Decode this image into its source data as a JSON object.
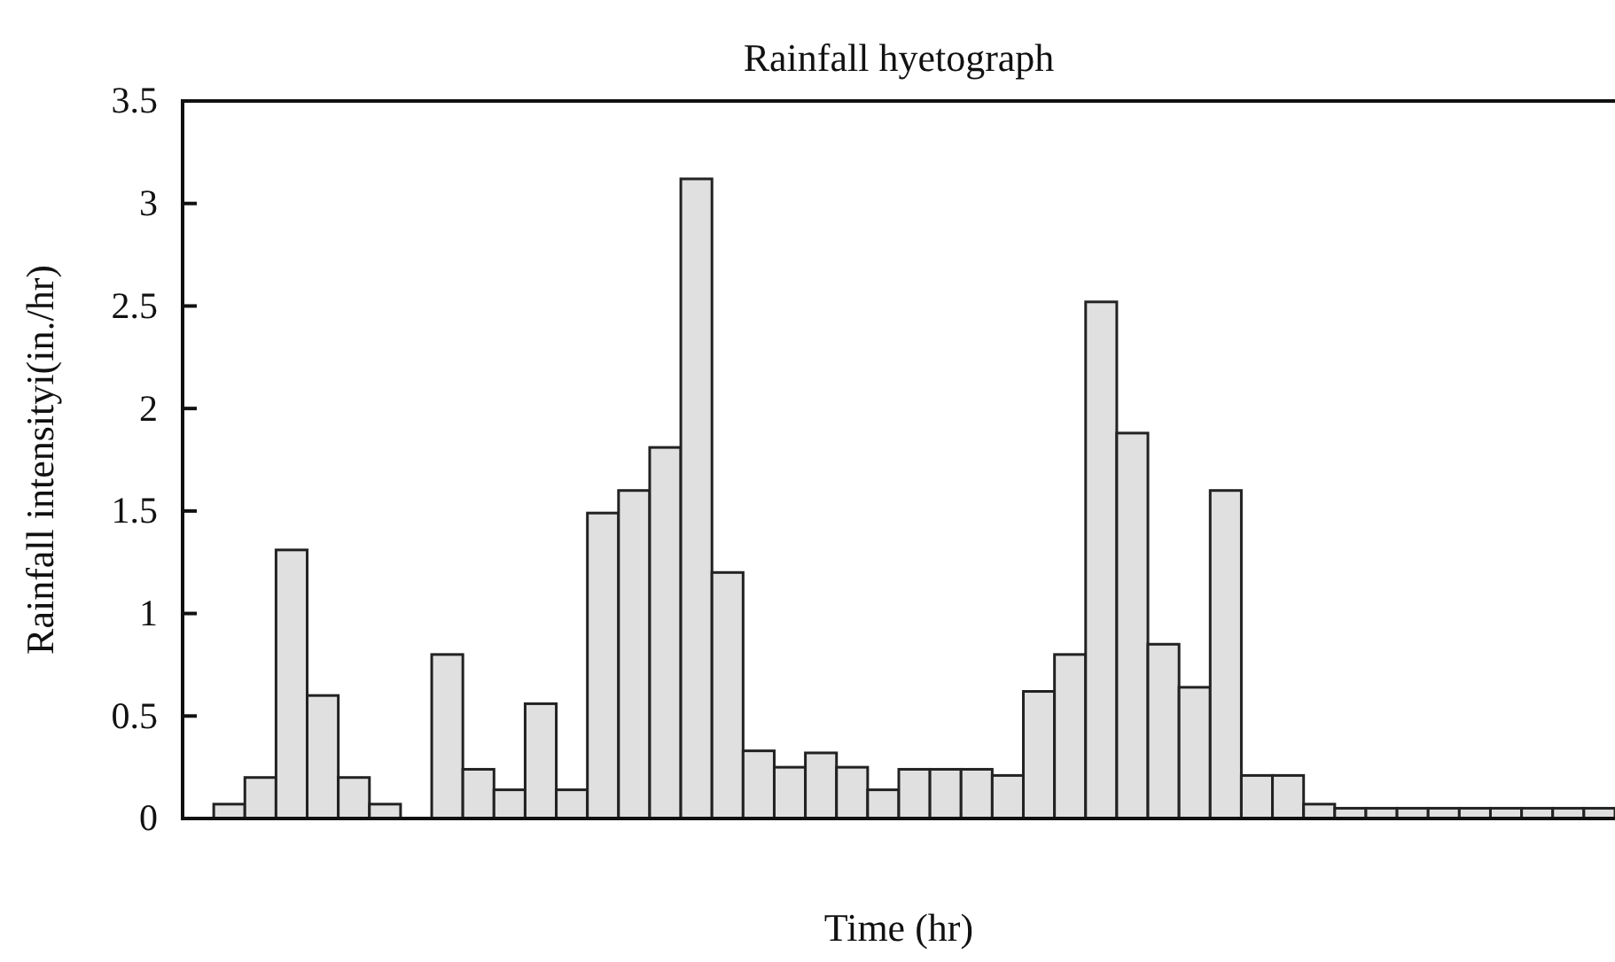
{
  "chart_data": {
    "type": "bar",
    "title": "Rainfall hyetograph",
    "xlabel": "Time (hr)",
    "ylabel": "Rainfall intensityi(in./hr)",
    "categories": [
      null,
      null,
      null,
      null,
      null,
      null,
      null,
      null,
      null,
      null,
      null,
      null,
      null,
      null,
      null,
      null,
      null,
      null,
      null,
      null,
      null,
      null,
      null,
      null,
      null,
      null,
      null,
      null,
      null,
      null,
      null,
      null,
      null,
      null,
      null,
      null,
      null,
      null,
      null,
      null,
      null,
      null,
      null,
      null,
      null,
      null
    ],
    "values": [
      null,
      0.07,
      0.2,
      1.31,
      0.6,
      0.2,
      0.07,
      null,
      0.8,
      0.24,
      0.14,
      0.56,
      0.14,
      1.49,
      1.6,
      1.81,
      3.12,
      1.2,
      0.33,
      0.25,
      0.32,
      0.25,
      0.14,
      0.24,
      0.24,
      0.24,
      0.21,
      0.62,
      0.8,
      2.52,
      1.88,
      0.85,
      0.64,
      1.6,
      0.21,
      0.21,
      0.07,
      0.05,
      0.05,
      0.05,
      0.05,
      0.05,
      0.05,
      0.05,
      0.05,
      0.05
    ],
    "color": "#e0e0e0",
    "ylim": [
      0,
      3.5
    ],
    "yticks": [
      0,
      0.5,
      1,
      1.5,
      2,
      2.5,
      3,
      3.5
    ],
    "grid": false
  }
}
